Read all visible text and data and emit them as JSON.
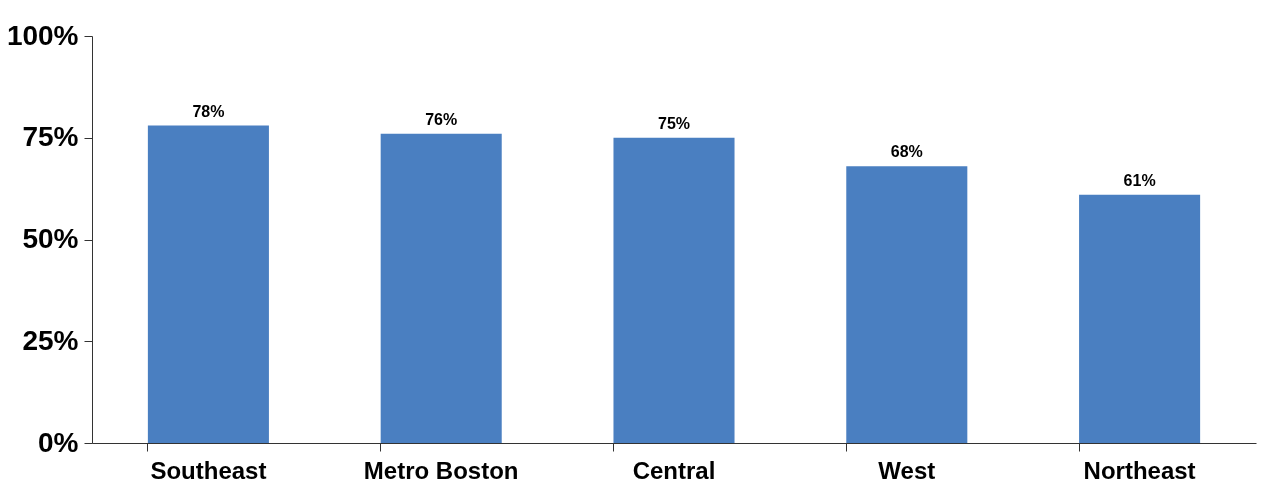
{
  "chart_data": {
    "type": "bar",
    "categories": [
      "Southeast",
      "Metro Boston",
      "Central",
      "West",
      "Northeast"
    ],
    "values": [
      78,
      76,
      75,
      68,
      61
    ],
    "value_labels": [
      "78%",
      "76%",
      "75%",
      "68%",
      "61%"
    ],
    "color": "#4a7fc1",
    "ylim": [
      0,
      100
    ],
    "yticks": [
      {
        "value": 0,
        "label": "0%"
      },
      {
        "value": 25,
        "label": "25%"
      },
      {
        "value": 50,
        "label": "50%"
      },
      {
        "value": 75,
        "label": "75%"
      },
      {
        "value": 100,
        "label": "100%"
      }
    ],
    "grid": false
  }
}
